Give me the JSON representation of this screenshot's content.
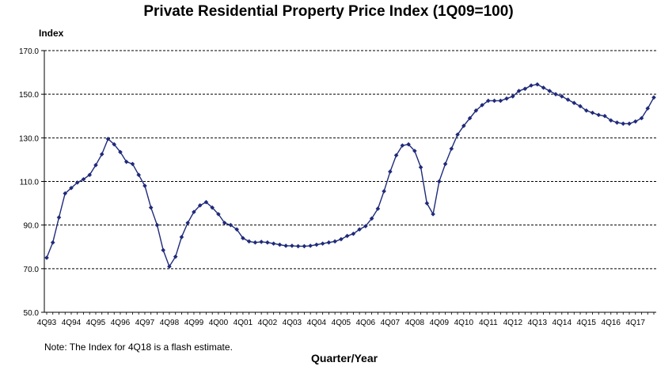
{
  "chart_data": {
    "type": "line",
    "title": "Private Residential Property Price Index (1Q09=100)",
    "ylabel": "Index",
    "xlabel": "Quarter/Year",
    "note": "Note: The Index for 4Q18 is a flash estimate.",
    "ylim": [
      50,
      170
    ],
    "yticks": [
      "50.0",
      "70.0",
      "90.0",
      "110.0",
      "130.0",
      "150.0",
      "170.0"
    ],
    "grid": "horizontal dashed",
    "legend": "none",
    "line_color": "#1f2a7a",
    "x_start": "4Q93",
    "x_end": "4Q18",
    "x_ticks": [
      "4Q93",
      "4Q94",
      "4Q95",
      "4Q96",
      "4Q97",
      "4Q98",
      "4Q99",
      "4Q00",
      "4Q01",
      "4Q02",
      "4Q03",
      "4Q04",
      "4Q05",
      "4Q06",
      "4Q07",
      "4Q08",
      "4Q09",
      "4Q10",
      "4Q11",
      "4Q12",
      "4Q13",
      "4Q14",
      "4Q15",
      "4Q16",
      "4Q17"
    ],
    "series": [
      {
        "values": [
          75.0,
          82.0,
          93.5,
          104.5,
          107.0,
          109.5,
          111.0,
          113.0,
          117.5,
          122.5,
          129.5,
          127.0,
          123.5,
          119.0,
          118.0,
          113.0,
          108.0,
          98.0,
          90.0,
          78.5,
          71.0,
          75.5,
          84.5,
          91.0,
          96.0,
          99.0,
          100.5,
          98.0,
          95.0,
          91.0,
          90.0,
          88.0,
          84.0,
          82.5,
          82.0,
          82.3,
          82.0,
          81.5,
          81.0,
          80.5,
          80.5,
          80.3,
          80.3,
          80.5,
          81.0,
          81.5,
          82.0,
          82.5,
          83.5,
          85.0,
          86.0,
          88.0,
          89.5,
          93.0,
          97.5,
          105.5,
          114.5,
          122.0,
          126.5,
          127.0,
          124.0,
          116.5,
          100.0,
          95.0,
          110.0,
          118.0,
          125.0,
          131.5,
          135.5,
          139.0,
          142.5,
          145.0,
          147.0,
          147.0,
          147.0,
          148.0,
          149.0,
          151.5,
          152.5,
          154.0,
          154.5,
          153.0,
          151.5,
          150.0,
          149.0,
          147.5,
          146.0,
          144.5,
          142.5,
          141.5,
          140.5,
          140.0,
          138.0,
          137.0,
          136.5,
          136.5,
          137.5,
          139.0,
          143.5,
          148.5
        ]
      }
    ]
  }
}
